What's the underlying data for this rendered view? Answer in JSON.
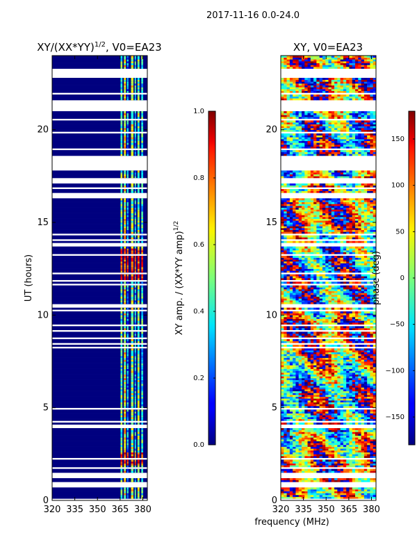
{
  "figure": {
    "suptitle": "2017-11-16 0.0-24.0",
    "xlabel_shared": "frequency (MHz)",
    "colormap": "jet"
  },
  "chart_data": [
    {
      "type": "heatmap",
      "title": "XY/(XX*YY)",
      "title_sup": "1/2",
      "title_suffix": ", V0=EA23",
      "ylabel": "UT (hours)",
      "xlim": [
        320,
        383
      ],
      "ylim": [
        0,
        24
      ],
      "xticks": [
        320,
        335,
        350,
        365,
        380
      ],
      "yticks": [
        0,
        5,
        10,
        15,
        20
      ],
      "colorbar": {
        "label": "XY amp. / (XX*YY amp)",
        "label_sup": "1/2",
        "range": [
          0.0,
          1.0
        ],
        "ticks": [
          "0.0",
          "0.2",
          "0.4",
          "0.6",
          "0.8",
          "1.0"
        ],
        "tick_values": [
          0.0,
          0.2,
          0.4,
          0.6,
          0.8,
          1.0
        ]
      }
    },
    {
      "type": "heatmap",
      "title": "XY, V0=EA23",
      "xlim": [
        320,
        383
      ],
      "ylim": [
        0,
        24
      ],
      "xticks": [
        320,
        335,
        350,
        365,
        380
      ],
      "yticks": [
        0,
        5,
        10,
        15,
        20
      ],
      "colorbar": {
        "label": "phase (deg)",
        "range": [
          -180,
          180
        ],
        "ticks": [
          "150",
          "100",
          "50",
          "0",
          "−50",
          "−100",
          "−150"
        ],
        "tick_values": [
          150,
          100,
          50,
          0,
          -50,
          -100,
          -150
        ]
      }
    }
  ]
}
